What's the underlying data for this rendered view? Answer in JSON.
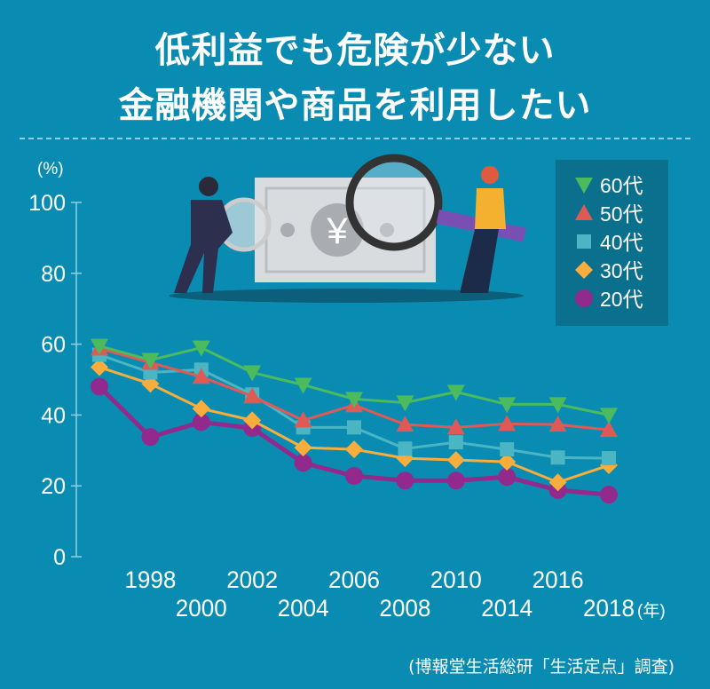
{
  "title_lines": [
    "低利益でも危険が少ない",
    "金融機関や商品を利用したい"
  ],
  "source": "(博報堂生活総研「生活定点」調査)",
  "colors": {
    "background": "#0a8cb2",
    "legend_bg": "#0b6f8e"
  },
  "chart_data": {
    "type": "line",
    "ylabel": "(%)",
    "xlabel_unit": "(年)",
    "ylim": [
      0,
      100
    ],
    "yticks": [
      0,
      20,
      40,
      60,
      80,
      100
    ],
    "categories": [
      "",
      "1998",
      "2000",
      "2002",
      "2004",
      "2006",
      "2008",
      "2010",
      "2014",
      "2016",
      "2018"
    ],
    "legend_position": "top-right",
    "grid": false,
    "series": [
      {
        "name": "60代",
        "color": "#4cbb5e",
        "marker": "triangle-down",
        "values": [
          59.5,
          55.5,
          59,
          52,
          48.5,
          44.5,
          43.5,
          46.5,
          43,
          43,
          40
        ]
      },
      {
        "name": "50代",
        "color": "#e05a55",
        "marker": "triangle-up",
        "values": [
          58.8,
          54.8,
          50.8,
          45.3,
          38.5,
          42.8,
          37.3,
          36.5,
          37.5,
          37.3,
          35.8
        ]
      },
      {
        "name": "40代",
        "color": "#4bb5c3",
        "marker": "square",
        "values": [
          57,
          52,
          52.8,
          45.8,
          36.5,
          36.5,
          30.5,
          32.3,
          30.3,
          28,
          27.8
        ]
      },
      {
        "name": "30代",
        "color": "#f9ad3c",
        "marker": "diamond",
        "values": [
          53.5,
          48.8,
          41.8,
          38.5,
          30.8,
          30.3,
          27.8,
          27.3,
          26.8,
          21,
          25.8
        ]
      },
      {
        "name": "20代",
        "color": "#912a8c",
        "marker": "circle",
        "values": [
          48,
          33.8,
          38,
          36.3,
          26.5,
          22.8,
          21.5,
          21.5,
          22.5,
          18.8,
          17.5
        ]
      }
    ]
  }
}
